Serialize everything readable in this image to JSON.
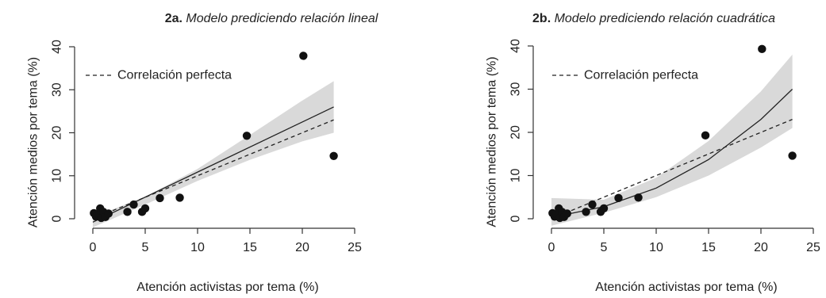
{
  "figure": {
    "panels": [
      {
        "title_prefix": "2a.",
        "title_text": "Modelo prediciendo relación lineal",
        "xlabel": "Atención activistas por tema (%)",
        "ylabel": "Atención medios por tema (%)",
        "legend_label": "Correlación perfecta",
        "x_ticks": [
          "0",
          "5",
          "10",
          "15",
          "20",
          "25"
        ],
        "y_ticks": [
          "0",
          "10",
          "20",
          "30",
          "40"
        ]
      },
      {
        "title_prefix": "2b.",
        "title_text": "Modelo prediciendo relación cuadrática",
        "xlabel": "Atención activistas por tema (%)",
        "ylabel": "Atención medios por tema (%)",
        "legend_label": "Correlación perfecta",
        "x_ticks": [
          "0",
          "5",
          "10",
          "15",
          "20",
          "25"
        ],
        "y_ticks": [
          "0",
          "10",
          "20",
          "30",
          "40"
        ]
      }
    ]
  },
  "colors": {
    "points": "#111111",
    "fit_line": "#222222",
    "perfect_line": "#222222",
    "ci_band": "#d9d9d9",
    "axis": "#333333"
  },
  "chart_data": [
    {
      "type": "scatter",
      "title": "2a. Modelo prediciendo relación lineal",
      "xlabel": "Atención activistas por tema (%)",
      "ylabel": "Atención medios por tema (%)",
      "xlim": [
        0,
        25
      ],
      "ylim": [
        0,
        40
      ],
      "grid": false,
      "legend": "top-left",
      "points": [
        {
          "x": 0.1,
          "y": 1.3
        },
        {
          "x": 0.3,
          "y": 0.5
        },
        {
          "x": 0.5,
          "y": 1.0
        },
        {
          "x": 0.7,
          "y": 2.4
        },
        {
          "x": 0.8,
          "y": 0.2
        },
        {
          "x": 1.0,
          "y": 1.6
        },
        {
          "x": 1.2,
          "y": 0.4
        },
        {
          "x": 1.5,
          "y": 1.2
        },
        {
          "x": 3.3,
          "y": 1.6
        },
        {
          "x": 3.9,
          "y": 3.3
        },
        {
          "x": 4.7,
          "y": 1.6
        },
        {
          "x": 5.0,
          "y": 2.4
        },
        {
          "x": 6.4,
          "y": 4.8
        },
        {
          "x": 8.3,
          "y": 4.9
        },
        {
          "x": 14.7,
          "y": 19.3
        },
        {
          "x": 20.1,
          "y": 37.9
        },
        {
          "x": 23.0,
          "y": 14.6
        }
      ],
      "series": [
        {
          "name": "Correlación perfecta",
          "style": "dashed",
          "x": [
            0,
            23
          ],
          "y": [
            0,
            23
          ]
        },
        {
          "style": "solid",
          "x": [
            0,
            23
          ],
          "y": [
            -0.8,
            26.0
          ]
        },
        {
          "style": "band",
          "x": [
            0,
            5,
            10,
            15,
            20,
            23
          ],
          "lower": [
            -2.0,
            3.3,
            8.8,
            13.7,
            18.0,
            20.0
          ],
          "upper": [
            0.4,
            5.1,
            11.6,
            19.5,
            27.5,
            32.0
          ]
        }
      ]
    },
    {
      "type": "scatter",
      "title": "2b. Modelo prediciendo relación cuadrática",
      "xlabel": "Atención activistas por tema (%)",
      "ylabel": "Atención medios por tema (%)",
      "xlim": [
        0,
        25
      ],
      "ylim": [
        0,
        40
      ],
      "grid": false,
      "legend": "top-left",
      "points": [
        {
          "x": 0.1,
          "y": 1.3
        },
        {
          "x": 0.3,
          "y": 0.5
        },
        {
          "x": 0.5,
          "y": 1.0
        },
        {
          "x": 0.7,
          "y": 2.4
        },
        {
          "x": 0.8,
          "y": 0.2
        },
        {
          "x": 1.0,
          "y": 1.6
        },
        {
          "x": 1.2,
          "y": 0.4
        },
        {
          "x": 1.5,
          "y": 1.2
        },
        {
          "x": 3.3,
          "y": 1.6
        },
        {
          "x": 3.9,
          "y": 3.3
        },
        {
          "x": 4.7,
          "y": 1.6
        },
        {
          "x": 5.0,
          "y": 2.4
        },
        {
          "x": 6.4,
          "y": 4.8
        },
        {
          "x": 8.3,
          "y": 4.9
        },
        {
          "x": 14.7,
          "y": 19.3
        },
        {
          "x": 20.1,
          "y": 39.3
        },
        {
          "x": 23.0,
          "y": 14.6
        }
      ],
      "series": [
        {
          "name": "Correlación perfecta",
          "style": "dashed",
          "x": [
            0,
            23
          ],
          "y": [
            0,
            23
          ]
        },
        {
          "style": "solid",
          "x": [
            0,
            5,
            10,
            15,
            20,
            23
          ],
          "y": [
            0.3,
            2.8,
            7.1,
            13.7,
            23.0,
            30.0
          ]
        },
        {
          "style": "band",
          "x": [
            0,
            5,
            10,
            15,
            20,
            23
          ],
          "lower": [
            -1.6,
            1.4,
            5.0,
            10.0,
            16.5,
            21.0
          ],
          "upper": [
            4.8,
            4.4,
            9.5,
            18.0,
            29.5,
            38.0
          ]
        }
      ]
    }
  ]
}
